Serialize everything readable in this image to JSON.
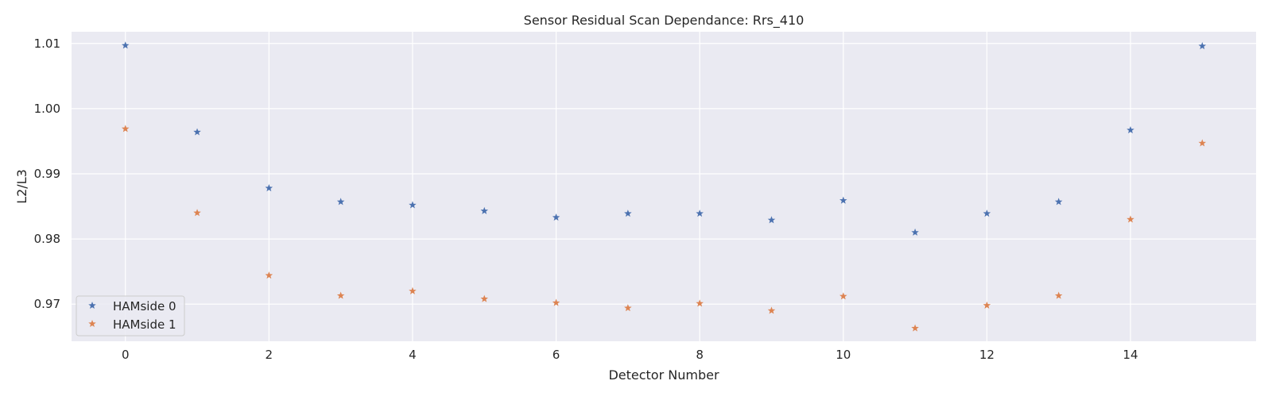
{
  "chart_data": {
    "type": "scatter",
    "title": "Sensor Residual Scan Dependance: Rrs_410",
    "xlabel": "Detector Number",
    "ylabel": "L2/L3",
    "xlim": [
      -0.75,
      15.75
    ],
    "ylim": [
      0.9643,
      1.0118
    ],
    "x_ticks": [
      0,
      2,
      4,
      6,
      8,
      10,
      12,
      14
    ],
    "y_ticks": [
      0.97,
      0.98,
      0.99,
      1.0,
      1.01
    ],
    "y_tick_labels": [
      "0.97",
      "0.98",
      "0.99",
      "1.00",
      "1.01"
    ],
    "grid": true,
    "legend_position": "lower-left",
    "marker": "star",
    "x": [
      0,
      1,
      2,
      3,
      4,
      5,
      6,
      7,
      8,
      9,
      10,
      11,
      12,
      13,
      14,
      15
    ],
    "series": [
      {
        "name": "HAMside 0",
        "color": "#4c72b0",
        "values": [
          1.0097,
          0.9964,
          0.9878,
          0.9857,
          0.9852,
          0.9843,
          0.9833,
          0.9839,
          0.9839,
          0.9829,
          0.9859,
          0.981,
          0.9839,
          0.9857,
          0.9967,
          1.0096
        ]
      },
      {
        "name": "HAMside 1",
        "color": "#dd8452",
        "values": [
          0.9969,
          0.984,
          0.9744,
          0.9713,
          0.972,
          0.9708,
          0.9702,
          0.9694,
          0.9701,
          0.969,
          0.9712,
          0.9663,
          0.9698,
          0.9713,
          0.983,
          0.9947
        ]
      }
    ]
  }
}
